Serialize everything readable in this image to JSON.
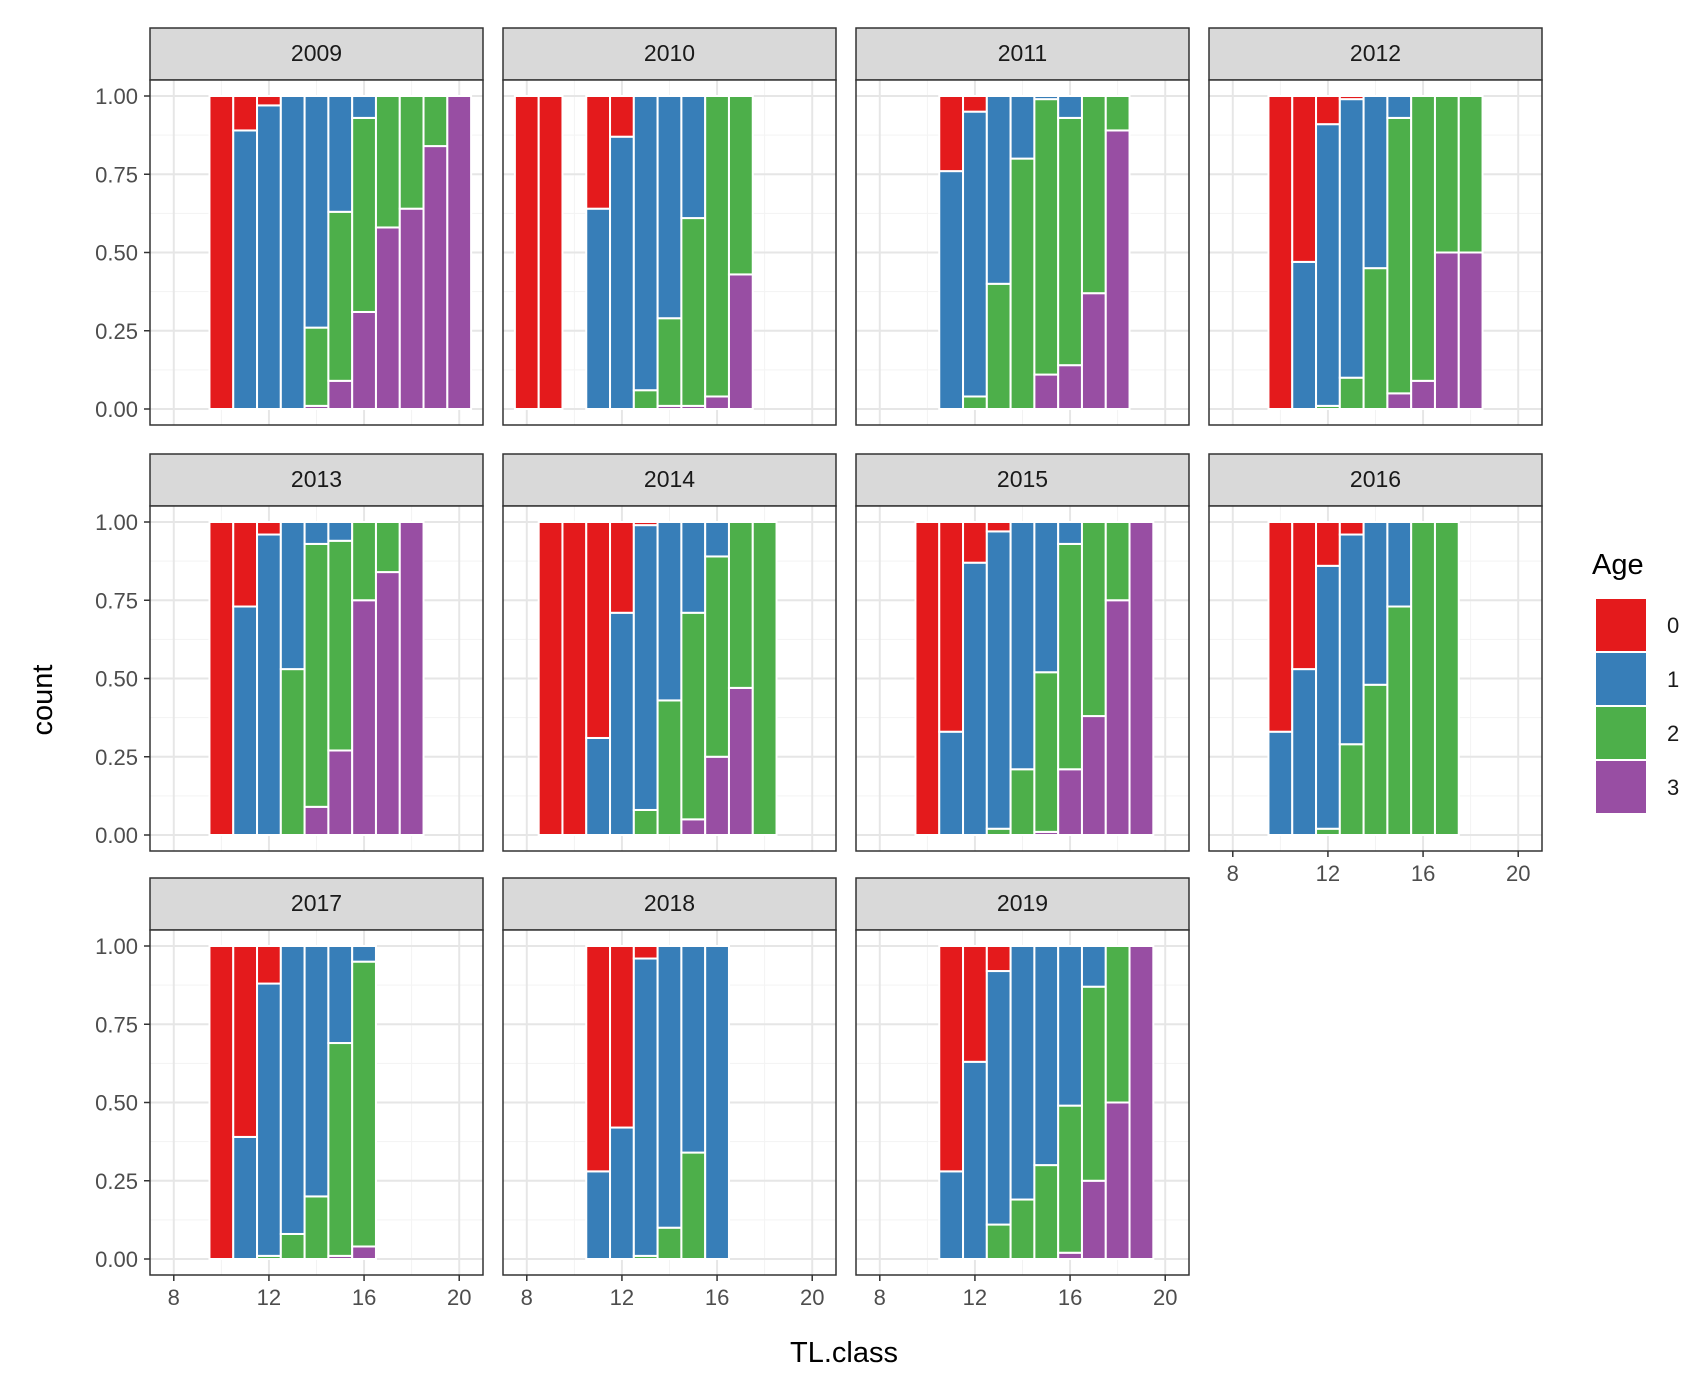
{
  "chart_data": {
    "type": "bar",
    "stacked": true,
    "position": "fill",
    "facet_by": "year",
    "xlabel": "TL.class",
    "ylabel": "count",
    "xlim": [
      7,
      21
    ],
    "ylim": [
      0,
      1
    ],
    "x_ticks": [
      8,
      12,
      16,
      20
    ],
    "y_ticks": [
      0.0,
      0.25,
      0.5,
      0.75,
      1.0
    ],
    "y_tick_labels": [
      "0.00",
      "0.25",
      "0.50",
      "0.75",
      "1.00"
    ],
    "legend": {
      "title": "Age",
      "placement": "right",
      "entries": [
        {
          "label": "0",
          "color": "#E41A1C"
        },
        {
          "label": "1",
          "color": "#377EB8"
        },
        {
          "label": "2",
          "color": "#4DAF4A"
        },
        {
          "label": "3",
          "color": "#984EA3"
        }
      ]
    },
    "panels": [
      {
        "year": "2009",
        "bars": [
          {
            "x": 10,
            "p": [
              1.0,
              0.0,
              0.0,
              0.0
            ]
          },
          {
            "x": 11,
            "p": [
              0.11,
              0.89,
              0.0,
              0.0
            ]
          },
          {
            "x": 12,
            "p": [
              0.03,
              0.97,
              0.0,
              0.0
            ]
          },
          {
            "x": 13,
            "p": [
              0.0,
              1.0,
              0.0,
              0.0
            ]
          },
          {
            "x": 14,
            "p": [
              0.0,
              0.74,
              0.25,
              0.01
            ]
          },
          {
            "x": 15,
            "p": [
              0.0,
              0.37,
              0.54,
              0.09
            ]
          },
          {
            "x": 16,
            "p": [
              0.0,
              0.07,
              0.62,
              0.31
            ]
          },
          {
            "x": 17,
            "p": [
              0.0,
              0.0,
              0.42,
              0.58
            ]
          },
          {
            "x": 18,
            "p": [
              0.0,
              0.0,
              0.36,
              0.64
            ]
          },
          {
            "x": 19,
            "p": [
              0.0,
              0.0,
              0.16,
              0.84
            ]
          },
          {
            "x": 20,
            "p": [
              0.0,
              0.0,
              0.0,
              1.0
            ]
          }
        ]
      },
      {
        "year": "2010",
        "bars": [
          {
            "x": 8,
            "p": [
              1.0,
              0.0,
              0.0,
              0.0
            ]
          },
          {
            "x": 9,
            "p": [
              1.0,
              0.0,
              0.0,
              0.0
            ]
          },
          {
            "x": 11,
            "p": [
              0.36,
              0.64,
              0.0,
              0.0
            ]
          },
          {
            "x": 12,
            "p": [
              0.13,
              0.87,
              0.0,
              0.0
            ]
          },
          {
            "x": 13,
            "p": [
              0.0,
              0.94,
              0.06,
              0.0
            ]
          },
          {
            "x": 14,
            "p": [
              0.0,
              0.71,
              0.28,
              0.01
            ]
          },
          {
            "x": 15,
            "p": [
              0.0,
              0.39,
              0.6,
              0.01
            ]
          },
          {
            "x": 16,
            "p": [
              0.0,
              0.0,
              0.96,
              0.04
            ]
          },
          {
            "x": 17,
            "p": [
              0.0,
              0.0,
              0.57,
              0.43
            ]
          }
        ]
      },
      {
        "year": "2011",
        "bars": [
          {
            "x": 11,
            "p": [
              0.24,
              0.76,
              0.0,
              0.0
            ]
          },
          {
            "x": 12,
            "p": [
              0.05,
              0.91,
              0.04,
              0.0
            ]
          },
          {
            "x": 13,
            "p": [
              0.0,
              0.6,
              0.4,
              0.0
            ]
          },
          {
            "x": 14,
            "p": [
              0.0,
              0.2,
              0.8,
              0.0
            ]
          },
          {
            "x": 15,
            "p": [
              0.0,
              0.01,
              0.88,
              0.11
            ]
          },
          {
            "x": 16,
            "p": [
              0.0,
              0.07,
              0.79,
              0.14
            ]
          },
          {
            "x": 17,
            "p": [
              0.0,
              0.0,
              0.63,
              0.37
            ]
          },
          {
            "x": 18,
            "p": [
              0.0,
              0.0,
              0.11,
              0.89
            ]
          }
        ]
      },
      {
        "year": "2012",
        "bars": [
          {
            "x": 10,
            "p": [
              1.0,
              0.0,
              0.0,
              0.0
            ]
          },
          {
            "x": 11,
            "p": [
              0.53,
              0.47,
              0.0,
              0.0
            ]
          },
          {
            "x": 12,
            "p": [
              0.09,
              0.9,
              0.01,
              0.0
            ]
          },
          {
            "x": 13,
            "p": [
              0.01,
              0.89,
              0.1,
              0.0
            ]
          },
          {
            "x": 14,
            "p": [
              0.0,
              0.55,
              0.45,
              0.0
            ]
          },
          {
            "x": 15,
            "p": [
              0.0,
              0.07,
              0.88,
              0.05
            ]
          },
          {
            "x": 16,
            "p": [
              0.0,
              0.0,
              0.91,
              0.09
            ]
          },
          {
            "x": 17,
            "p": [
              0.0,
              0.0,
              0.5,
              0.5
            ]
          },
          {
            "x": 18,
            "p": [
              0.0,
              0.0,
              0.5,
              0.5
            ]
          }
        ]
      },
      {
        "year": "2013",
        "bars": [
          {
            "x": 10,
            "p": [
              1.0,
              0.0,
              0.0,
              0.0
            ]
          },
          {
            "x": 11,
            "p": [
              0.27,
              0.73,
              0.0,
              0.0
            ]
          },
          {
            "x": 12,
            "p": [
              0.04,
              0.96,
              0.0,
              0.0
            ]
          },
          {
            "x": 13,
            "p": [
              0.0,
              0.47,
              0.53,
              0.0
            ]
          },
          {
            "x": 14,
            "p": [
              0.0,
              0.07,
              0.84,
              0.09
            ]
          },
          {
            "x": 15,
            "p": [
              0.0,
              0.06,
              0.67,
              0.27
            ]
          },
          {
            "x": 16,
            "p": [
              0.0,
              0.0,
              0.25,
              0.75
            ]
          },
          {
            "x": 17,
            "p": [
              0.0,
              0.0,
              0.16,
              0.84
            ]
          },
          {
            "x": 18,
            "p": [
              0.0,
              0.0,
              0.0,
              1.0
            ]
          }
        ]
      },
      {
        "year": "2014",
        "bars": [
          {
            "x": 9,
            "p": [
              1.0,
              0.0,
              0.0,
              0.0
            ]
          },
          {
            "x": 10,
            "p": [
              1.0,
              0.0,
              0.0,
              0.0
            ]
          },
          {
            "x": 11,
            "p": [
              0.69,
              0.31,
              0.0,
              0.0
            ]
          },
          {
            "x": 12,
            "p": [
              0.29,
              0.71,
              0.0,
              0.0
            ]
          },
          {
            "x": 13,
            "p": [
              0.01,
              0.91,
              0.08,
              0.0
            ]
          },
          {
            "x": 14,
            "p": [
              0.0,
              0.57,
              0.43,
              0.0
            ]
          },
          {
            "x": 15,
            "p": [
              0.0,
              0.29,
              0.66,
              0.05
            ]
          },
          {
            "x": 16,
            "p": [
              0.0,
              0.11,
              0.64,
              0.25
            ]
          },
          {
            "x": 17,
            "p": [
              0.0,
              0.0,
              0.53,
              0.47
            ]
          },
          {
            "x": 18,
            "p": [
              0.0,
              0.0,
              1.0,
              0.0
            ]
          }
        ]
      },
      {
        "year": "2015",
        "bars": [
          {
            "x": 10,
            "p": [
              1.0,
              0.0,
              0.0,
              0.0
            ]
          },
          {
            "x": 11,
            "p": [
              0.67,
              0.33,
              0.0,
              0.0
            ]
          },
          {
            "x": 12,
            "p": [
              0.13,
              0.87,
              0.0,
              0.0
            ]
          },
          {
            "x": 13,
            "p": [
              0.03,
              0.95,
              0.02,
              0.0
            ]
          },
          {
            "x": 14,
            "p": [
              0.0,
              0.79,
              0.21,
              0.0
            ]
          },
          {
            "x": 15,
            "p": [
              0.0,
              0.48,
              0.51,
              0.01
            ]
          },
          {
            "x": 16,
            "p": [
              0.0,
              0.07,
              0.72,
              0.21
            ]
          },
          {
            "x": 17,
            "p": [
              0.0,
              0.0,
              0.62,
              0.38
            ]
          },
          {
            "x": 18,
            "p": [
              0.0,
              0.0,
              0.25,
              0.75
            ]
          },
          {
            "x": 19,
            "p": [
              0.0,
              0.0,
              0.0,
              1.0
            ]
          }
        ]
      },
      {
        "year": "2016",
        "bars": [
          {
            "x": 10,
            "p": [
              0.67,
              0.33,
              0.0,
              0.0
            ]
          },
          {
            "x": 11,
            "p": [
              0.47,
              0.53,
              0.0,
              0.0
            ]
          },
          {
            "x": 12,
            "p": [
              0.14,
              0.84,
              0.02,
              0.0
            ]
          },
          {
            "x": 13,
            "p": [
              0.04,
              0.67,
              0.29,
              0.0
            ]
          },
          {
            "x": 14,
            "p": [
              0.0,
              0.52,
              0.48,
              0.0
            ]
          },
          {
            "x": 15,
            "p": [
              0.0,
              0.27,
              0.73,
              0.0
            ]
          },
          {
            "x": 16,
            "p": [
              0.0,
              0.0,
              1.0,
              0.0
            ]
          },
          {
            "x": 17,
            "p": [
              0.0,
              0.0,
              1.0,
              0.0
            ]
          }
        ]
      },
      {
        "year": "2017",
        "bars": [
          {
            "x": 10,
            "p": [
              1.0,
              0.0,
              0.0,
              0.0
            ]
          },
          {
            "x": 11,
            "p": [
              0.61,
              0.39,
              0.0,
              0.0
            ]
          },
          {
            "x": 12,
            "p": [
              0.12,
              0.87,
              0.01,
              0.0
            ]
          },
          {
            "x": 13,
            "p": [
              0.0,
              0.92,
              0.08,
              0.0
            ]
          },
          {
            "x": 14,
            "p": [
              0.0,
              0.8,
              0.2,
              0.0
            ]
          },
          {
            "x": 15,
            "p": [
              0.0,
              0.31,
              0.68,
              0.01
            ]
          },
          {
            "x": 16,
            "p": [
              0.0,
              0.05,
              0.91,
              0.04
            ]
          }
        ]
      },
      {
        "year": "2018",
        "bars": [
          {
            "x": 11,
            "p": [
              0.72,
              0.28,
              0.0,
              0.0
            ]
          },
          {
            "x": 12,
            "p": [
              0.58,
              0.42,
              0.0,
              0.0
            ]
          },
          {
            "x": 13,
            "p": [
              0.04,
              0.95,
              0.01,
              0.0
            ]
          },
          {
            "x": 14,
            "p": [
              0.0,
              0.9,
              0.1,
              0.0
            ]
          },
          {
            "x": 15,
            "p": [
              0.0,
              0.66,
              0.34,
              0.0
            ]
          },
          {
            "x": 16,
            "p": [
              0.0,
              1.0,
              0.0,
              0.0
            ]
          }
        ]
      },
      {
        "year": "2019",
        "bars": [
          {
            "x": 11,
            "p": [
              0.72,
              0.28,
              0.0,
              0.0
            ]
          },
          {
            "x": 12,
            "p": [
              0.37,
              0.63,
              0.0,
              0.0
            ]
          },
          {
            "x": 13,
            "p": [
              0.08,
              0.81,
              0.11,
              0.0
            ]
          },
          {
            "x": 14,
            "p": [
              0.0,
              0.81,
              0.19,
              0.0
            ]
          },
          {
            "x": 15,
            "p": [
              0.0,
              0.7,
              0.3,
              0.0
            ]
          },
          {
            "x": 16,
            "p": [
              0.0,
              0.51,
              0.47,
              0.02
            ]
          },
          {
            "x": 17,
            "p": [
              0.0,
              0.13,
              0.62,
              0.25
            ]
          },
          {
            "x": 18,
            "p": [
              0.0,
              0.0,
              0.5,
              0.5
            ]
          },
          {
            "x": 19,
            "p": [
              0.0,
              0.0,
              0.0,
              1.0
            ]
          }
        ]
      }
    ]
  }
}
